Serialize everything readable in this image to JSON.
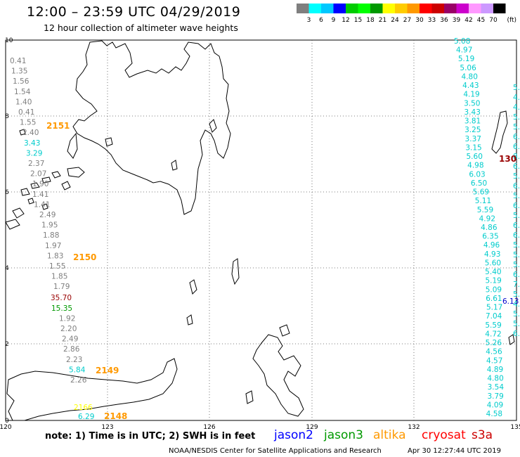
{
  "header": {
    "title": "12:00 – 23:59 UTC 04/29/2019",
    "subtitle": "12 hour collection of altimeter wave heights"
  },
  "colorbar": {
    "unit": "(ft)",
    "ticks": [
      "3",
      "6",
      "9",
      "12",
      "15",
      "18",
      "21",
      "24",
      "27",
      "30",
      "33",
      "36",
      "39",
      "42",
      "45",
      "70"
    ],
    "colors": [
      "#7f7f7f",
      "#00ffff",
      "#00c8ff",
      "#0000ff",
      "#00cc00",
      "#00ff00",
      "#009900",
      "#ffff00",
      "#ffcc00",
      "#ff9900",
      "#ff0000",
      "#cc0000",
      "#990066",
      "#cc00cc",
      "#ff99ff",
      "#cc99ff",
      "#000000"
    ]
  },
  "axes": {
    "x_ticks": [
      "120",
      "123",
      "126",
      "129",
      "132",
      "135"
    ],
    "y_ticks": [
      "0",
      "2",
      "4",
      "6",
      "8",
      "10"
    ]
  },
  "passes": [
    {
      "id": "2151",
      "color": "#ff9900"
    },
    {
      "id": "2150",
      "color": "#ff9900"
    },
    {
      "id": "2149",
      "color": "#ff9900"
    },
    {
      "id": "2148",
      "color": "#ff9900"
    },
    {
      "id": "130",
      "color": "#990000"
    }
  ],
  "labels_left": [
    {
      "v": "0.41",
      "c": "#7f7f7f"
    },
    {
      "v": "1.35",
      "c": "#7f7f7f"
    },
    {
      "v": "1.56",
      "c": "#7f7f7f"
    },
    {
      "v": "1.54",
      "c": "#7f7f7f"
    },
    {
      "v": "1.40",
      "c": "#7f7f7f"
    },
    {
      "v": "0.41",
      "c": "#7f7f7f"
    },
    {
      "v": "1.55",
      "c": "#7f7f7f"
    },
    {
      "v": "2.40",
      "c": "#7f7f7f"
    },
    {
      "v": "3.43",
      "c": "#00cccc"
    },
    {
      "v": "3.29",
      "c": "#00cccc"
    },
    {
      "v": "2.37",
      "c": "#7f7f7f"
    },
    {
      "v": "2.07",
      "c": "#7f7f7f"
    },
    {
      "v": "1.90",
      "c": "#7f7f7f"
    },
    {
      "v": "1.41",
      "c": "#7f7f7f"
    },
    {
      "v": "1.41",
      "c": "#7f7f7f"
    },
    {
      "v": "2.49",
      "c": "#7f7f7f"
    },
    {
      "v": "1.95",
      "c": "#7f7f7f"
    },
    {
      "v": "1.88",
      "c": "#7f7f7f"
    },
    {
      "v": "1.97",
      "c": "#7f7f7f"
    },
    {
      "v": "1.83",
      "c": "#7f7f7f"
    },
    {
      "v": "1.55",
      "c": "#7f7f7f"
    },
    {
      "v": "1.85",
      "c": "#7f7f7f"
    },
    {
      "v": "1.79",
      "c": "#7f7f7f"
    },
    {
      "v": "35.70",
      "c": "#990000"
    },
    {
      "v": "15.35",
      "c": "#009900"
    },
    {
      "v": "1.92",
      "c": "#7f7f7f"
    },
    {
      "v": "2.20",
      "c": "#7f7f7f"
    },
    {
      "v": "2.49",
      "c": "#7f7f7f"
    },
    {
      "v": "2.86",
      "c": "#7f7f7f"
    },
    {
      "v": "2.23",
      "c": "#7f7f7f"
    },
    {
      "v": "5.84",
      "c": "#00cccc"
    },
    {
      "v": "2.26",
      "c": "#7f7f7f"
    }
  ],
  "labels_bottom": [
    {
      "v": "2166",
      "c": "#ffff00"
    },
    {
      "v": "6.29",
      "c": "#00cccc"
    }
  ],
  "labels_right": [
    "5.08",
    "4.97",
    "5.19",
    "5.06",
    "4.80",
    "4.43",
    "4.19",
    "3.50",
    "3.43",
    "3.81",
    "3.25",
    "3.37",
    "3.15",
    "5.60",
    "4.98",
    "6.03",
    "6.50",
    "5.69",
    "5.11",
    "5.59",
    "4.92",
    "4.86",
    "6.35",
    "4.96",
    "4.93",
    "5.60",
    "5.40",
    "5.19",
    "5.09",
    "6.61",
    "5.17",
    "7.04",
    "5.59",
    "4.72",
    "5.26",
    "4.56",
    "4.57",
    "4.89",
    "4.80",
    "3.54",
    "3.79",
    "4.09",
    "4.58"
  ],
  "labels_right_edge": [
    "5.",
    "4.",
    "4.",
    "5.",
    "5.",
    "6.",
    "6.",
    "8.",
    "6.",
    "5.",
    "6.",
    "5.",
    "6.",
    "5.",
    "6.",
    "6.",
    "5.",
    "5.",
    "5.",
    "6.",
    "7.",
    "5.",
    "4.",
    "5.",
    "5.",
    "6."
  ],
  "labels_right_misc": [
    {
      "v": "6.13",
      "c": "#0000cc"
    }
  ],
  "footer": {
    "note": "note:  1) Time is in UTC;  2) SWH is in feet",
    "satellites": [
      {
        "name": "jason2",
        "color": "#0000ff"
      },
      {
        "name": "jason3",
        "color": "#009900"
      },
      {
        "name": "altika",
        "color": "#ff9900"
      },
      {
        "name": "cryosat",
        "color": "#ff0000"
      },
      {
        "name": "s3a",
        "color": "#cc0000"
      }
    ],
    "credits": "NOAA/NESDIS Center for Satellite Applications and Research",
    "timestamp": "Apr 30 12:27:44 UTC 2019"
  }
}
